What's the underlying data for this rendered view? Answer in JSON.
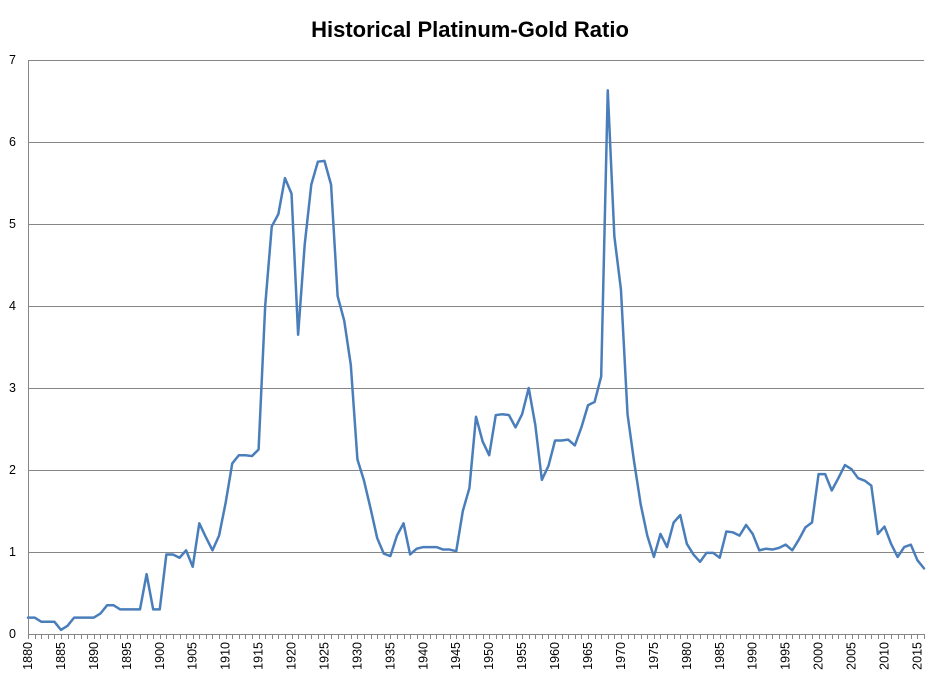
{
  "colors": {
    "series": "#4A7EBB",
    "grid": "#868686",
    "background": "#FFFFFF",
    "text": "#000000"
  },
  "chart_data": {
    "type": "line",
    "title": "Historical Platinum-Gold Ratio",
    "xlabel": "",
    "ylabel": "",
    "ylim": [
      0,
      7
    ],
    "xlim": [
      1880,
      2016
    ],
    "grid": "horizontal",
    "legend": "none",
    "y_ticks": [
      0,
      1,
      2,
      3,
      4,
      5,
      6,
      7
    ],
    "x_tick_labels": [
      "1880",
      "1885",
      "1890",
      "1895",
      "1900",
      "1905",
      "1910",
      "1915",
      "1920",
      "1925",
      "1930",
      "1935",
      "1940",
      "1945",
      "1950",
      "1955",
      "1960",
      "1965",
      "1970",
      "1975",
      "1980",
      "1985",
      "1990",
      "1995",
      "2000",
      "2005",
      "2010",
      "2015"
    ],
    "series": [
      {
        "x": [
          1880,
          1881,
          1882,
          1883,
          1884,
          1885,
          1886,
          1887,
          1888,
          1889,
          1890,
          1891,
          1892,
          1893,
          1894,
          1895,
          1896,
          1897,
          1898,
          1899,
          1900,
          1901,
          1902,
          1903,
          1904,
          1905,
          1906,
          1907,
          1908,
          1909,
          1910,
          1911,
          1912,
          1913,
          1914,
          1915,
          1916,
          1917,
          1918,
          1919,
          1920,
          1921,
          1922,
          1923,
          1924,
          1925,
          1926,
          1927,
          1928,
          1929,
          1930,
          1931,
          1932,
          1933,
          1934,
          1935,
          1936,
          1937,
          1938,
          1939,
          1940,
          1941,
          1942,
          1943,
          1944,
          1945,
          1946,
          1947,
          1948,
          1949,
          1950,
          1951,
          1952,
          1953,
          1954,
          1955,
          1956,
          1957,
          1958,
          1959,
          1960,
          1961,
          1962,
          1963,
          1964,
          1965,
          1966,
          1967,
          1968,
          1969,
          1970,
          1971,
          1972,
          1973,
          1974,
          1975,
          1976,
          1977,
          1978,
          1979,
          1980,
          1981,
          1982,
          1983,
          1984,
          1985,
          1986,
          1987,
          1988,
          1989,
          1990,
          1991,
          1992,
          1993,
          1994,
          1995,
          1996,
          1997,
          1998,
          1999,
          2000,
          2001,
          2002,
          2003,
          2004,
          2005,
          2006,
          2007,
          2008,
          2009,
          2010,
          2011,
          2012,
          2013,
          2014,
          2015,
          2016
        ],
        "y": [
          0.2,
          0.2,
          0.15,
          0.15,
          0.15,
          0.05,
          0.1,
          0.2,
          0.2,
          0.2,
          0.2,
          0.25,
          0.35,
          0.35,
          0.3,
          0.3,
          0.3,
          0.3,
          0.73,
          0.3,
          0.3,
          0.97,
          0.97,
          0.93,
          1.02,
          0.82,
          1.35,
          1.18,
          1.02,
          1.2,
          1.6,
          2.08,
          2.18,
          2.18,
          2.17,
          2.25,
          4.0,
          4.97,
          5.12,
          5.56,
          5.37,
          3.65,
          4.75,
          5.48,
          5.76,
          5.77,
          5.48,
          4.12,
          3.82,
          3.28,
          2.13,
          1.87,
          1.53,
          1.17,
          0.98,
          0.95,
          1.2,
          1.35,
          0.97,
          1.04,
          1.06,
          1.06,
          1.06,
          1.03,
          1.03,
          1.01,
          1.5,
          1.78,
          2.65,
          2.35,
          2.18,
          2.67,
          2.68,
          2.67,
          2.52,
          2.68,
          3.0,
          2.55,
          1.88,
          2.05,
          2.36,
          2.36,
          2.37,
          2.3,
          2.52,
          2.79,
          2.83,
          3.14,
          6.63,
          4.85,
          4.2,
          2.68,
          2.1,
          1.58,
          1.2,
          0.94,
          1.22,
          1.06,
          1.36,
          1.45,
          1.1,
          0.97,
          0.88,
          0.99,
          0.99,
          0.93,
          1.25,
          1.24,
          1.2,
          1.33,
          1.22,
          1.02,
          1.04,
          1.03,
          1.05,
          1.09,
          1.02,
          1.15,
          1.3,
          1.36,
          1.95,
          1.95,
          1.75,
          1.9,
          2.06,
          2.01,
          1.9,
          1.87,
          1.81,
          1.22,
          1.31,
          1.1,
          0.94,
          1.06,
          1.09,
          0.9,
          0.8
        ]
      }
    ]
  }
}
